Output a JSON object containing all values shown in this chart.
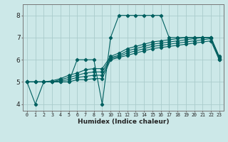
{
  "xlabel": "Humidex (Indice chaleur)",
  "x": [
    0,
    1,
    2,
    3,
    4,
    5,
    6,
    7,
    8,
    9,
    10,
    11,
    12,
    13,
    14,
    15,
    16,
    17,
    18,
    19,
    20,
    21,
    22,
    23
  ],
  "line1": [
    5.0,
    4.0,
    5.0,
    5.0,
    5.0,
    5.0,
    6.0,
    6.0,
    6.0,
    4.0,
    7.0,
    8.0,
    8.0,
    8.0,
    8.0,
    8.0,
    8.0,
    7.0,
    7.0,
    7.0,
    7.0,
    7.0,
    7.0,
    6.0
  ],
  "line2": [
    5.0,
    5.0,
    5.0,
    5.0,
    5.0,
    5.0,
    5.1,
    5.1,
    5.15,
    5.15,
    6.0,
    6.1,
    6.2,
    6.3,
    6.4,
    6.5,
    6.55,
    6.6,
    6.65,
    6.7,
    6.75,
    6.8,
    6.85,
    6.0
  ],
  "line3": [
    5.0,
    5.0,
    5.0,
    5.0,
    5.05,
    5.1,
    5.2,
    5.25,
    5.3,
    5.3,
    6.05,
    6.15,
    6.3,
    6.4,
    6.5,
    6.6,
    6.65,
    6.7,
    6.75,
    6.8,
    6.85,
    6.9,
    6.95,
    6.05
  ],
  "line4": [
    5.0,
    5.0,
    5.0,
    5.0,
    5.1,
    5.2,
    5.3,
    5.4,
    5.45,
    5.45,
    6.1,
    6.2,
    6.4,
    6.5,
    6.6,
    6.7,
    6.75,
    6.8,
    6.85,
    6.9,
    6.95,
    7.0,
    7.0,
    6.1
  ],
  "line5": [
    5.0,
    5.0,
    5.0,
    5.05,
    5.15,
    5.3,
    5.4,
    5.55,
    5.6,
    5.6,
    6.15,
    6.3,
    6.5,
    6.6,
    6.7,
    6.8,
    6.85,
    6.9,
    6.95,
    7.0,
    7.0,
    7.0,
    7.0,
    6.15
  ],
  "bg_color": "#cce8e8",
  "grid_color": "#aacccc",
  "line_color": "#006060",
  "marker": "D",
  "marker_size": 2.2,
  "ylim": [
    3.7,
    8.5
  ],
  "xlim": [
    -0.5,
    23.5
  ],
  "yticks": [
    4,
    5,
    6,
    7,
    8
  ],
  "xticks": [
    0,
    1,
    2,
    3,
    4,
    5,
    6,
    7,
    8,
    9,
    10,
    11,
    12,
    13,
    14,
    15,
    16,
    17,
    18,
    19,
    20,
    21,
    22,
    23
  ]
}
